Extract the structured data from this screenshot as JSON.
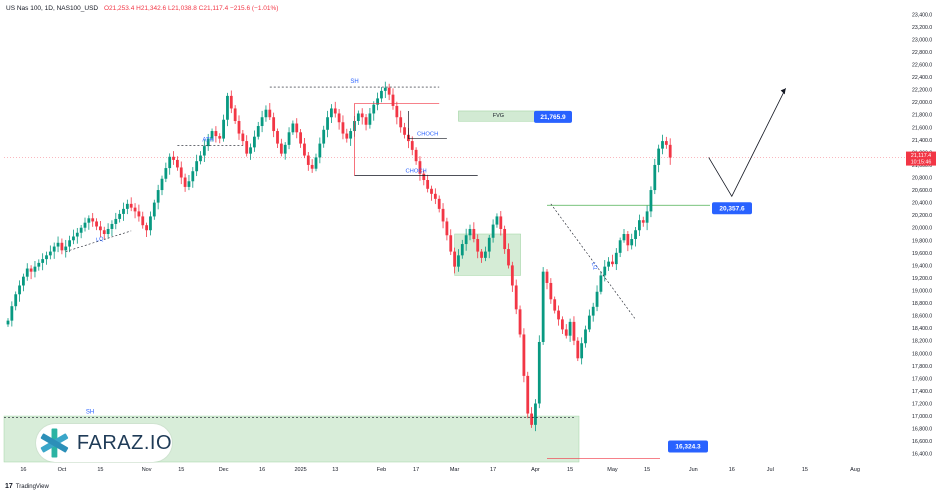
{
  "header": {
    "symbol": "US Nas 100, 1D, NAS100_USD",
    "open": "O21,253.4",
    "high": "H21,342.6",
    "low": "L21,038.8",
    "close": "C21,117.4",
    "change": "−215.6 (−1.01%)"
  },
  "footer": {
    "brand": "TradingView",
    "brand_glyph": "17"
  },
  "logo": {
    "text": "FARAZ.IO"
  },
  "colors": {
    "up": "#089981",
    "down": "#f23645",
    "zone": "#c8e6c9",
    "label": "#2962ff"
  },
  "chart_data": {
    "type": "candlestick",
    "ylim": [
      16300,
      23500
    ],
    "y_ticks": [
      "16,400.0",
      "16,600.0",
      "16,800.0",
      "17,000.0",
      "17,200.0",
      "17,400.0",
      "17,600.0",
      "17,800.0",
      "18,000.0",
      "18,200.0",
      "18,400.0",
      "18,600.0",
      "18,800.0",
      "19,000.0",
      "19,200.0",
      "19,400.0",
      "19,600.0",
      "19,800.0",
      "20,000.0",
      "20,200.0",
      "20,400.0",
      "20,600.0",
      "20,800.0",
      "21,000.0",
      "21,200.0",
      "21,400.0",
      "21,600.0",
      "21,800.0",
      "22,000.0",
      "22,200.0",
      "22,400.0",
      "22,600.0",
      "22,800.0",
      "23,000.0",
      "23,200.0",
      "23,400.0"
    ],
    "x_ticks": [
      {
        "label": "16",
        "i": 4
      },
      {
        "label": "Oct",
        "i": 14
      },
      {
        "label": "15",
        "i": 24
      },
      {
        "label": "Nov",
        "i": 36
      },
      {
        "label": "15",
        "i": 45
      },
      {
        "label": "Dec",
        "i": 56
      },
      {
        "label": "16",
        "i": 66
      },
      {
        "label": "2025",
        "i": 76
      },
      {
        "label": "13",
        "i": 85
      },
      {
        "label": "Feb",
        "i": 97
      },
      {
        "label": "17",
        "i": 106
      },
      {
        "label": "Mar",
        "i": 116
      },
      {
        "label": "17",
        "i": 126
      },
      {
        "label": "Apr",
        "i": 137
      },
      {
        "label": "15",
        "i": 146
      },
      {
        "label": "May",
        "i": 157
      },
      {
        "label": "15",
        "i": 166
      },
      {
        "label": "Jun",
        "i": 178
      },
      {
        "label": "16",
        "i": 188
      },
      {
        "label": "Jul",
        "i": 198
      },
      {
        "label": "15",
        "i": 207
      },
      {
        "label": "Aug",
        "i": 220
      }
    ],
    "close_series": [
      18520,
      18750,
      18940,
      19080,
      19220,
      19350,
      19300,
      19380,
      19440,
      19500,
      19560,
      19620,
      19700,
      19760,
      19640,
      19700,
      19800,
      19860,
      19920,
      20000,
      20080,
      20150,
      20100,
      20020,
      19960,
      19900,
      19980,
      20060,
      20140,
      20220,
      20300,
      20380,
      20320,
      20260,
      20180,
      20040,
      19960,
      20180,
      20400,
      20600,
      20780,
      20950,
      21130,
      21080,
      20960,
      20800,
      20650,
      20740,
      20900,
      21060,
      21150,
      21300,
      21420,
      21540,
      21460,
      21420,
      21720,
      22100,
      21900,
      21700,
      21500,
      21380,
      21180,
      21280,
      21450,
      21620,
      21760,
      21880,
      21760,
      21540,
      21340,
      21180,
      21320,
      21520,
      21660,
      21520,
      21340,
      21150,
      21000,
      20940,
      21120,
      21340,
      21560,
      21760,
      21900,
      21820,
      21680,
      21500,
      21420,
      21540,
      21700,
      21820,
      21760,
      21640,
      21820,
      21960,
      22060,
      22180,
      22230,
      22120,
      21940,
      21760,
      21600,
      21480,
      21380,
      21240,
      21060,
      20860,
      20760,
      20620,
      20540,
      20460,
      20300,
      20100,
      19880,
      19620,
      19380,
      19560,
      19740,
      19880,
      19980,
      19820,
      19620,
      19520,
      19620,
      19840,
      20050,
      20180,
      19980,
      19660,
      19400,
      19080,
      18700,
      18300,
      17640,
      17040,
      16860,
      17200,
      18180,
      19300,
      19120,
      18860,
      18680,
      18540,
      18380,
      18280,
      18500,
      18200,
      17920,
      18160,
      18380,
      18600,
      18740,
      18980,
      19240,
      19380,
      19460,
      19420,
      19600,
      19800,
      19900,
      19720,
      19820,
      19960,
      20120,
      20080,
      20260,
      20600,
      21000,
      21260,
      21380,
      21320,
      21117.4
    ],
    "annotations": {
      "sh_top": {
        "text": "SH",
        "price": 22240
      },
      "sh_bottom": {
        "text": "SH",
        "price": 16980
      },
      "ath": {
        "text": "ATH",
        "price": 21310
      },
      "fvg": {
        "text": "FVG",
        "top": 21860,
        "bottom": 21760
      },
      "choch_1": {
        "text": "CHOCH",
        "price": 21420
      },
      "choch_2": {
        "text": "CHOCH",
        "price": 20830
      },
      "lq_1": {
        "text": "LQ"
      },
      "lq_2": {
        "text": "LQ"
      },
      "label_fvg": "21,765.9",
      "label_target": "20,357.6",
      "label_low": "16,324.3",
      "last_price": "21,117.4",
      "countdown": "10:15:46"
    }
  }
}
